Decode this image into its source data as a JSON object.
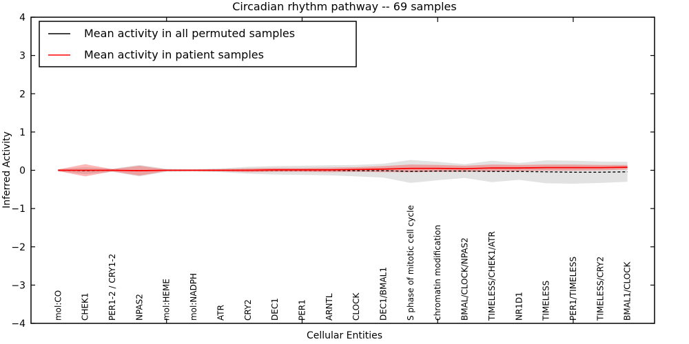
{
  "figure": {
    "title": "Circadian rhythm pathway -- 69 samples",
    "xlabel": "Cellular Entities",
    "ylabel": "Inferred Activity"
  },
  "legend": {
    "items": [
      {
        "label": "Mean activity in all permuted samples",
        "color": "#000000"
      },
      {
        "label": "Mean activity in patient samples",
        "color": "#ff0000"
      }
    ]
  },
  "axes": {
    "y_ticks": [
      4,
      3,
      2,
      1,
      0,
      -1,
      -2,
      -3,
      -4
    ],
    "y_min": -4,
    "y_max": 4,
    "x_min": 0,
    "x_max": 23,
    "x_major_ticks": [
      5,
      10,
      15,
      20
    ]
  },
  "chart_data": {
    "type": "line",
    "title": "Circadian rhythm pathway -- 69 samples",
    "xlabel": "Cellular Entities",
    "ylabel": "Inferred Activity",
    "ylim": [
      -4,
      4
    ],
    "grid": false,
    "legend_position": "upper left",
    "categories": [
      "mol:CO",
      "CHEK1",
      "PER1-2 / CRY1-2",
      "NPAS2",
      "mol:HEME",
      "mol:NADPH",
      "ATR",
      "CRY2",
      "DEC1",
      "PER1",
      "ARNTL",
      "CLOCK",
      "DEC1/BMAL1",
      "S phase of mitotic cell cycle",
      "chromatin modification",
      "BMAL/CLOCK/NPAS2",
      "TIMELESS/CHEK1/ATR",
      "NR1D1",
      "TIMELESS",
      "PER1/TIMELESS",
      "TIMELESS/CRY2",
      "BMAL1/CLOCK"
    ],
    "x": [
      1,
      2,
      3,
      4,
      5,
      6,
      7,
      8,
      9,
      10,
      11,
      12,
      13,
      14,
      15,
      16,
      17,
      18,
      19,
      20,
      21,
      22
    ],
    "series": [
      {
        "name": "Mean activity in all permuted samples",
        "color": "#000000",
        "line_style": "dashed",
        "values": [
          0.0,
          -0.01,
          0.0,
          -0.01,
          0.0,
          0.0,
          0.0,
          0.0,
          0.0,
          0.0,
          0.0,
          -0.01,
          -0.01,
          -0.03,
          -0.02,
          -0.02,
          -0.03,
          -0.03,
          -0.04,
          -0.05,
          -0.05,
          -0.04
        ],
        "band_half_width": [
          0.03,
          0.09,
          0.04,
          0.15,
          0.04,
          0.03,
          0.05,
          0.09,
          0.11,
          0.12,
          0.13,
          0.15,
          0.18,
          0.3,
          0.24,
          0.18,
          0.28,
          0.22,
          0.3,
          0.3,
          0.28,
          0.26
        ],
        "band_color": "rgba(125,125,125,0.22)"
      },
      {
        "name": "Mean activity in patient samples",
        "color": "#ff0000",
        "line_style": "solid",
        "values": [
          0.0,
          0.0,
          0.0,
          -0.01,
          0.0,
          0.0,
          0.0,
          0.0,
          0.01,
          0.01,
          0.01,
          0.02,
          0.03,
          0.05,
          0.05,
          0.04,
          0.06,
          0.06,
          0.07,
          0.07,
          0.07,
          0.08
        ],
        "band_half_width": [
          0.02,
          0.16,
          0.03,
          0.13,
          0.02,
          0.02,
          0.03,
          0.05,
          0.05,
          0.05,
          0.06,
          0.06,
          0.08,
          0.1,
          0.09,
          0.08,
          0.09,
          0.08,
          0.08,
          0.08,
          0.07,
          0.06
        ],
        "band_color": "rgba(255,0,0,0.28)"
      }
    ]
  },
  "layout_colors": {
    "axis": "#000000",
    "background": "#ffffff"
  }
}
